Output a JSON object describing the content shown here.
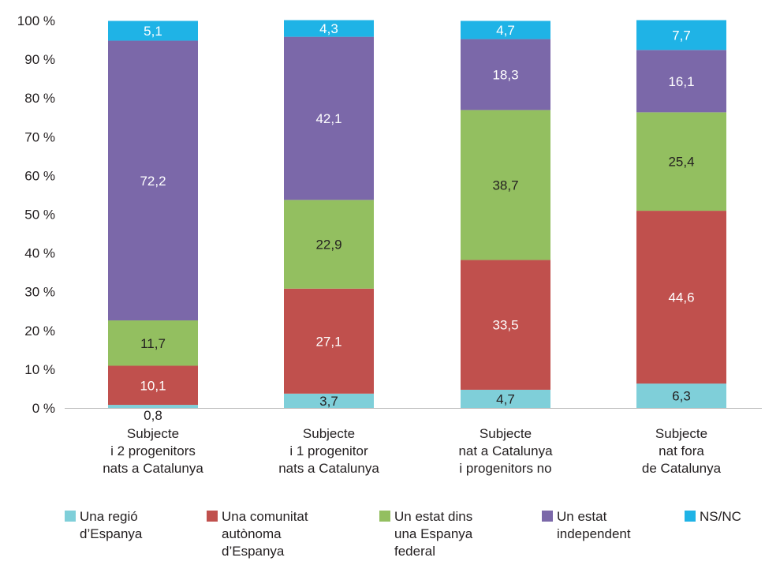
{
  "chart_data": {
    "type": "bar",
    "stacked": true,
    "ylim": [
      0,
      100
    ],
    "y_ticks": [
      "0 %",
      "10 %",
      "20 %",
      "30 %",
      "40 %",
      "50 %",
      "60 %",
      "70 %",
      "80 %",
      "90 %",
      "100 %"
    ],
    "categories": [
      "Subjecte\ni 2 progenitors\nnats a Catalunya",
      "Subjecte\ni 1 progenitor\nnats a Catalunya",
      "Subjecte\nnat a Catalunya\ni progenitors no",
      "Subjecte\nnat fora\nde Catalunya"
    ],
    "series": [
      {
        "name": "Una regió\nd’Espanya",
        "color": "#7fcfd9",
        "label_color": "#231f20",
        "values": [
          0.8,
          3.7,
          4.7,
          6.3
        ],
        "labels": [
          "0,8",
          "3,7",
          "4,7",
          "6,3"
        ]
      },
      {
        "name": "Una comunitat\nautònoma\nd’Espanya",
        "color": "#c0504d",
        "label_color": "#ffffff",
        "values": [
          10.1,
          27.1,
          33.5,
          44.6
        ],
        "labels": [
          "10,1",
          "27,1",
          "33,5",
          "44,6"
        ]
      },
      {
        "name": "Un estat dins\nuna Espanya\nfederal",
        "color": "#93bf60",
        "label_color": "#231f20",
        "values": [
          11.7,
          22.9,
          38.7,
          25.4
        ],
        "labels": [
          "11,7",
          "22,9",
          "38,7",
          "25,4"
        ]
      },
      {
        "name": "Un estat\nindependent",
        "color": "#7b68a9",
        "label_color": "#ffffff",
        "values": [
          72.2,
          42.1,
          18.3,
          16.1
        ],
        "labels": [
          "72,2",
          "42,1",
          "18,3",
          "16,1"
        ]
      },
      {
        "name": "NS/NC",
        "color": "#1fb3e6",
        "label_color": "#ffffff",
        "values": [
          5.1,
          4.3,
          4.7,
          7.7
        ],
        "labels": [
          "5,1",
          "4,3",
          "4,7",
          "7,7"
        ]
      }
    ],
    "grid": false,
    "legend_position": "bottom"
  }
}
